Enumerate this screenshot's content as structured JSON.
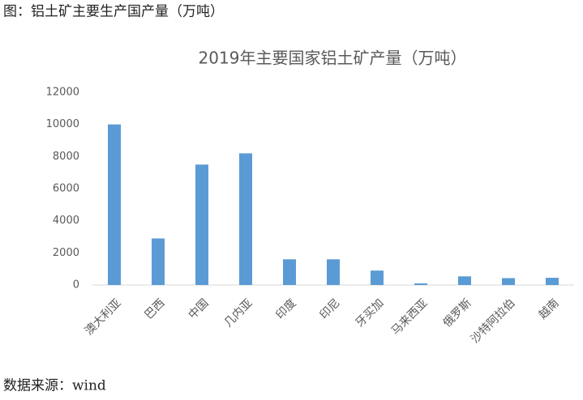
{
  "caption": "图：铝土矿主要生产国产量（万吨）",
  "source": "数据来源：wind",
  "chart_data": {
    "type": "bar",
    "title": "2019年主要国家铝土矿产量（万吨）",
    "categories": [
      "澳大利亚",
      "巴西",
      "中国",
      "几内亚",
      "印度",
      "印尼",
      "牙买加",
      "马来西亚",
      "俄罗斯",
      "沙特阿拉伯",
      "越南"
    ],
    "values": [
      10000,
      2900,
      7500,
      8200,
      1600,
      1600,
      900,
      100,
      540,
      430,
      450
    ],
    "color": "#5b9bd5",
    "ylim": [
      0,
      12000
    ],
    "yticks": [
      0,
      2000,
      4000,
      6000,
      8000,
      10000,
      12000
    ],
    "grid": false
  }
}
